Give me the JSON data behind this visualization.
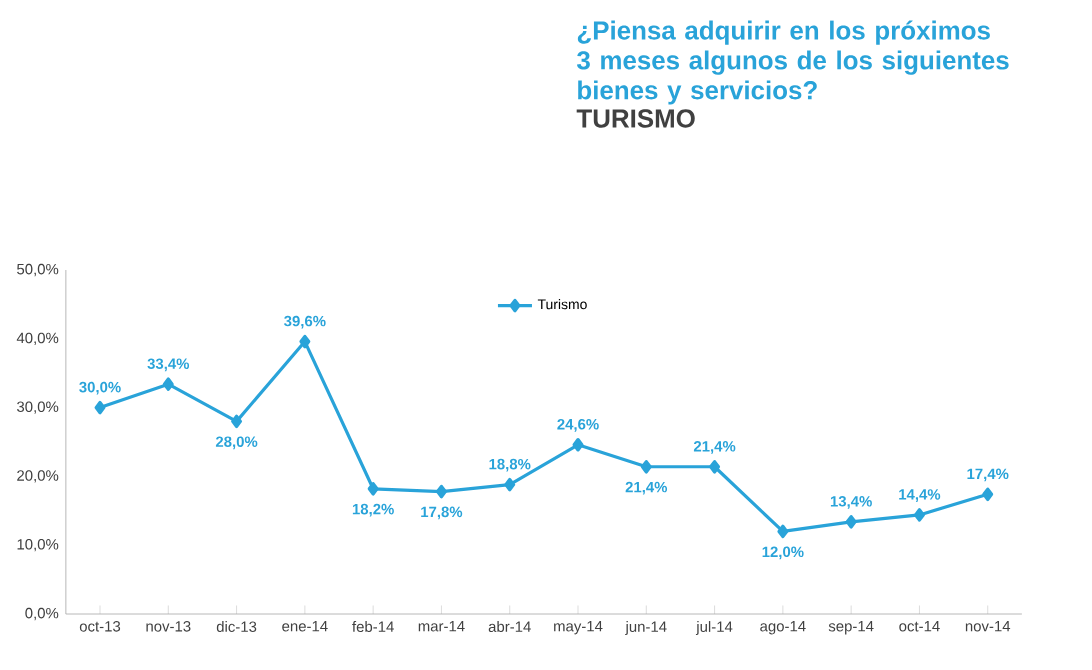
{
  "chart_data": {
    "type": "line",
    "title": "¿Piensa adquirir en los próximos 3 meses algunos de los siguientes bienes y servicios?",
    "subtitle": "TURISMO",
    "categories": [
      "oct-13",
      "nov-13",
      "dic-13",
      "ene-14",
      "feb-14",
      "mar-14",
      "abr-14",
      "may-14",
      "jun-14",
      "jul-14",
      "ago-14",
      "sep-14",
      "oct-14",
      "nov-14"
    ],
    "series": [
      {
        "name": "Turismo",
        "color": "#29a3d9",
        "values": [
          30.0,
          33.4,
          28.0,
          39.6,
          18.2,
          17.8,
          18.8,
          24.6,
          21.4,
          21.4,
          12.0,
          13.4,
          14.4,
          17.4
        ],
        "value_labels": [
          "30,0%",
          "33,4%",
          "28,0%",
          "39,6%",
          "18,2%",
          "17,8%",
          "18,8%",
          "24,6%",
          "21,4%",
          "21,4%",
          "12,0%",
          "13,4%",
          "14,4%",
          "17,4%"
        ]
      }
    ],
    "ylim": [
      0,
      50
    ],
    "yticks": [
      {
        "value": 0,
        "label": "0,0%"
      },
      {
        "value": 10,
        "label": "10,0%"
      },
      {
        "value": 20,
        "label": "20,0%"
      },
      {
        "value": 30,
        "label": "30,0%"
      },
      {
        "value": 40,
        "label": "40,0%"
      },
      {
        "value": 50,
        "label": "50,0%"
      }
    ],
    "legend": "top",
    "marker": "diamond",
    "line_style": "solid",
    "grid": false
  }
}
